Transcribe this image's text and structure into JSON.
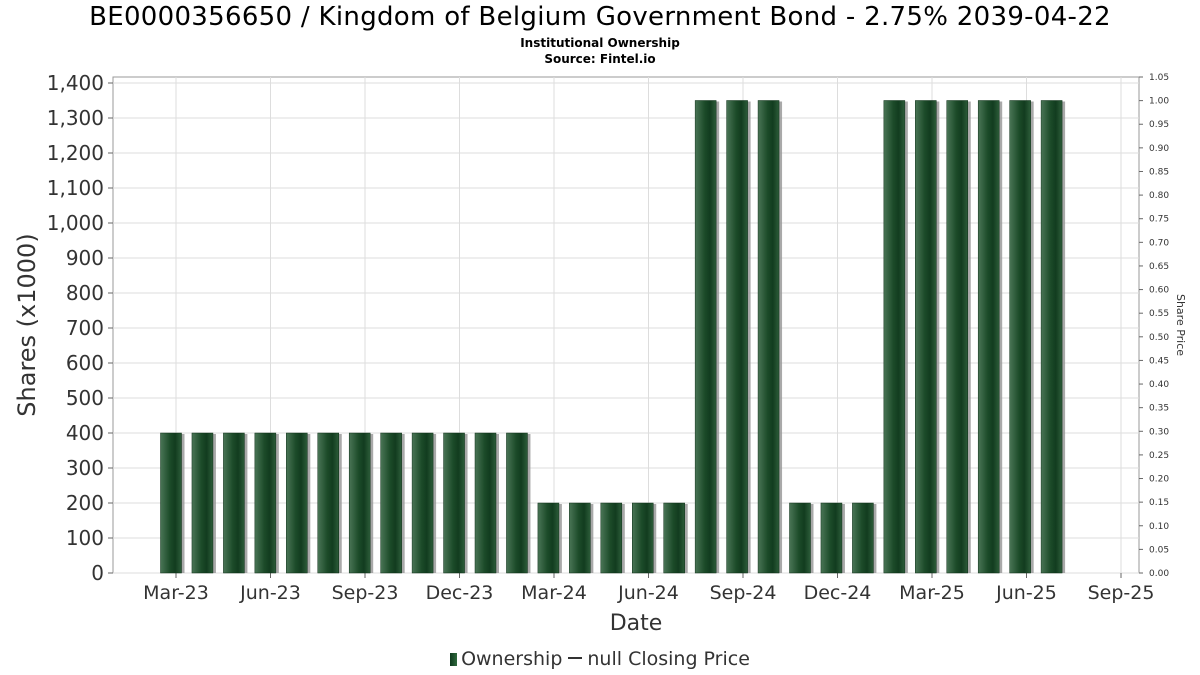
{
  "chart_data": {
    "type": "bar",
    "title": "BE0000356650 / Kingdom of Belgium Government Bond - 2.75% 2039-04-22",
    "subtitle_1": "Institutional Ownership",
    "subtitle_2": "Source: Fintel.io",
    "xlabel": "Date",
    "ylabel": "Shares (x1000)",
    "y2label": "Share Price",
    "x_ticks": [
      "Mar-23",
      "Jun-23",
      "Sep-23",
      "Dec-23",
      "Mar-24",
      "Jun-24",
      "Sep-24",
      "Dec-24",
      "Mar-25",
      "Jun-25",
      "Sep-25"
    ],
    "y_ticks": [
      "0",
      "100",
      "200",
      "300",
      "400",
      "500",
      "600",
      "700",
      "800",
      "900",
      "1,000",
      "1,100",
      "1,200",
      "1,300",
      "1,400"
    ],
    "y2_ticks": [
      "0.00",
      "0.05",
      "0.10",
      "0.15",
      "0.20",
      "0.25",
      "0.30",
      "0.35",
      "0.40",
      "0.45",
      "0.50",
      "0.55",
      "0.60",
      "0.65",
      "0.70",
      "0.75",
      "0.80",
      "0.85",
      "0.90",
      "0.95",
      "1.00",
      "1.05"
    ],
    "ylim": [
      0,
      1400
    ],
    "y2lim": [
      0,
      1.05
    ],
    "grid": true,
    "legend_position": "bottom",
    "legend": [
      "Ownership",
      "null Closing Price"
    ],
    "series": [
      {
        "name": "Ownership",
        "color": "#1f4d2b",
        "values": [
          400,
          400,
          400,
          400,
          400,
          400,
          400,
          400,
          400,
          400,
          400,
          400,
          200,
          200,
          200,
          200,
          200,
          1350,
          1350,
          1350,
          200,
          200,
          200,
          1350,
          1350,
          1350,
          1350,
          1350,
          1350
        ]
      }
    ]
  }
}
